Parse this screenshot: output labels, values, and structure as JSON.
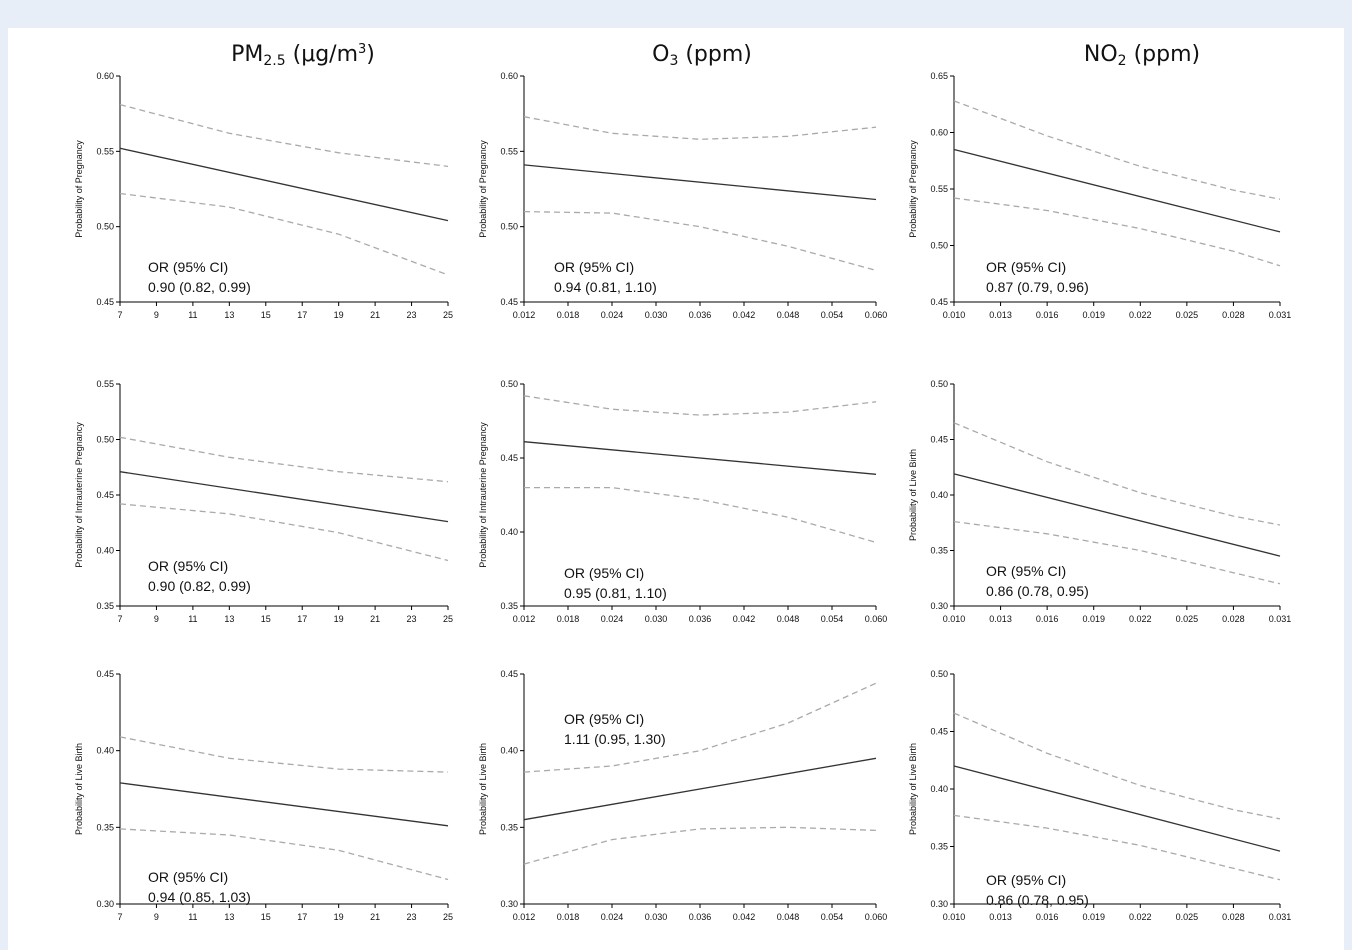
{
  "columns": [
    {
      "base": "PM",
      "sub": "2.5",
      "unit_pre": " (μg/m",
      "unit_sup": "3",
      "unit_post": ")"
    },
    {
      "base": "O",
      "sub": "3",
      "unit_pre": " (ppm)",
      "unit_sup": "",
      "unit_post": ""
    },
    {
      "base": "NO",
      "sub": "2",
      "unit_pre": " (ppm)",
      "unit_sup": "",
      "unit_post": ""
    }
  ],
  "colors": {
    "estimate": "#333333",
    "ci": "#aaaaaa",
    "axis": "#000000",
    "page_bg": "#e8eef7",
    "figure_bg": "#ffffff"
  },
  "chart_data": [
    {
      "type": "line",
      "row": 0,
      "col": 0,
      "ylabel": "Probability of Pregnancy",
      "xlim": [
        7,
        25
      ],
      "ylim": [
        0.45,
        0.6
      ],
      "xticks": [
        "7",
        "9",
        "11",
        "13",
        "15",
        "17",
        "19",
        "21",
        "23",
        "25"
      ],
      "yticks": [
        "0.45",
        "0.50",
        "0.55",
        "0.60"
      ],
      "series": [
        {
          "role": "estimate",
          "x": [
            7,
            25
          ],
          "y": [
            0.552,
            0.504
          ]
        },
        {
          "role": "ci",
          "x": [
            7,
            13,
            19,
            25
          ],
          "y": [
            0.581,
            0.562,
            0.549,
            0.54
          ]
        },
        {
          "role": "ci",
          "x": [
            7,
            13,
            19,
            25
          ],
          "y": [
            0.522,
            0.513,
            0.495,
            0.468
          ]
        }
      ],
      "annotation": {
        "label": "OR (95% CI)",
        "value": "0.90 (0.82, 0.99)"
      }
    },
    {
      "type": "line",
      "row": 0,
      "col": 1,
      "ylabel": "Probability of Pregnancy",
      "xlim": [
        0.012,
        0.06
      ],
      "ylim": [
        0.45,
        0.6
      ],
      "xticks": [
        "0.012",
        "0.018",
        "0.024",
        "0.030",
        "0.036",
        "0.042",
        "0.048",
        "0.054",
        "0.060"
      ],
      "yticks": [
        "0.45",
        "0.50",
        "0.55",
        "0.60"
      ],
      "series": [
        {
          "role": "estimate",
          "x": [
            0.012,
            0.06
          ],
          "y": [
            0.541,
            0.518
          ]
        },
        {
          "role": "ci",
          "x": [
            0.012,
            0.024,
            0.036,
            0.048,
            0.06
          ],
          "y": [
            0.573,
            0.562,
            0.558,
            0.56,
            0.566
          ]
        },
        {
          "role": "ci",
          "x": [
            0.012,
            0.024,
            0.036,
            0.048,
            0.06
          ],
          "y": [
            0.51,
            0.509,
            0.5,
            0.487,
            0.471
          ]
        }
      ],
      "annotation": {
        "label": "OR (95% CI)",
        "value": "0.94 (0.81, 1.10)"
      }
    },
    {
      "type": "line",
      "row": 0,
      "col": 2,
      "ylabel": "Probability of Pregnancy",
      "xlim": [
        0.01,
        0.031
      ],
      "ylim": [
        0.45,
        0.65
      ],
      "xticks": [
        "0.010",
        "0.013",
        "0.016",
        "0.019",
        "0.022",
        "0.025",
        "0.028",
        "0.031"
      ],
      "yticks": [
        "0.45",
        "0.50",
        "0.55",
        "0.60",
        "0.65"
      ],
      "series": [
        {
          "role": "estimate",
          "x": [
            0.01,
            0.031
          ],
          "y": [
            0.585,
            0.512
          ]
        },
        {
          "role": "ci",
          "x": [
            0.01,
            0.016,
            0.022,
            0.028,
            0.031
          ],
          "y": [
            0.628,
            0.597,
            0.57,
            0.549,
            0.541
          ]
        },
        {
          "role": "ci",
          "x": [
            0.01,
            0.016,
            0.022,
            0.028,
            0.031
          ],
          "y": [
            0.542,
            0.531,
            0.515,
            0.495,
            0.482
          ]
        }
      ],
      "annotation": {
        "label": "OR (95% CI)",
        "value": "0.87 (0.79, 0.96)"
      }
    },
    {
      "type": "line",
      "row": 1,
      "col": 0,
      "ylabel": "Probability of Intrauterine Pregnancy",
      "xlim": [
        7,
        25
      ],
      "ylim": [
        0.35,
        0.55
      ],
      "xticks": [
        "7",
        "9",
        "11",
        "13",
        "15",
        "17",
        "19",
        "21",
        "23",
        "25"
      ],
      "yticks": [
        "0.35",
        "0.40",
        "0.45",
        "0.50",
        "0.55"
      ],
      "series": [
        {
          "role": "estimate",
          "x": [
            7,
            25
          ],
          "y": [
            0.471,
            0.426
          ]
        },
        {
          "role": "ci",
          "x": [
            7,
            13,
            19,
            25
          ],
          "y": [
            0.502,
            0.484,
            0.471,
            0.462
          ]
        },
        {
          "role": "ci",
          "x": [
            7,
            13,
            19,
            25
          ],
          "y": [
            0.442,
            0.433,
            0.416,
            0.391
          ]
        }
      ],
      "annotation": {
        "label": "OR (95% CI)",
        "value": "0.90 (0.82, 0.99)"
      }
    },
    {
      "type": "line",
      "row": 1,
      "col": 1,
      "ylabel": "Probability of Intrauterine Pregnancy",
      "xlim": [
        0.012,
        0.06
      ],
      "ylim": [
        0.35,
        0.5
      ],
      "xticks": [
        "0.012",
        "0.018",
        "0.024",
        "0.030",
        "0.036",
        "0.042",
        "0.048",
        "0.054",
        "0.060"
      ],
      "yticks": [
        "0.35",
        "0.40",
        "0.45",
        "0.50"
      ],
      "series": [
        {
          "role": "estimate",
          "x": [
            0.012,
            0.06
          ],
          "y": [
            0.461,
            0.439
          ]
        },
        {
          "role": "ci",
          "x": [
            0.012,
            0.024,
            0.036,
            0.048,
            0.06
          ],
          "y": [
            0.492,
            0.483,
            0.479,
            0.481,
            0.488
          ]
        },
        {
          "role": "ci",
          "x": [
            0.012,
            0.024,
            0.036,
            0.048,
            0.06
          ],
          "y": [
            0.43,
            0.43,
            0.422,
            0.41,
            0.393
          ]
        }
      ],
      "annotation": {
        "label": "OR (95% CI)",
        "value": "0.95 (0.81, 1.10)"
      }
    },
    {
      "type": "line",
      "row": 1,
      "col": 2,
      "ylabel": "Probability of Live Birth",
      "xlim": [
        0.01,
        0.031
      ],
      "ylim": [
        0.3,
        0.5
      ],
      "xticks": [
        "0.010",
        "0.013",
        "0.016",
        "0.019",
        "0.022",
        "0.025",
        "0.028",
        "0.031"
      ],
      "yticks": [
        "0.30",
        "0.35",
        "0.40",
        "0.45",
        "0.50"
      ],
      "series": [
        {
          "role": "estimate",
          "x": [
            0.01,
            0.031
          ],
          "y": [
            0.419,
            0.345
          ]
        },
        {
          "role": "ci",
          "x": [
            0.01,
            0.016,
            0.022,
            0.028,
            0.031
          ],
          "y": [
            0.465,
            0.43,
            0.402,
            0.381,
            0.373
          ]
        },
        {
          "role": "ci",
          "x": [
            0.01,
            0.016,
            0.022,
            0.028,
            0.031
          ],
          "y": [
            0.376,
            0.365,
            0.35,
            0.33,
            0.32
          ]
        }
      ],
      "annotation": {
        "label": "OR (95% CI)",
        "value": "0.86 (0.78, 0.95)"
      }
    },
    {
      "type": "line",
      "row": 2,
      "col": 0,
      "ylabel": "Probability of Live Birth",
      "xlim": [
        7,
        25
      ],
      "ylim": [
        0.3,
        0.45
      ],
      "xticks": [
        "7",
        "9",
        "11",
        "13",
        "15",
        "17",
        "19",
        "21",
        "23",
        "25"
      ],
      "yticks": [
        "0.30",
        "0.35",
        "0.40",
        "0.45"
      ],
      "series": [
        {
          "role": "estimate",
          "x": [
            7,
            25
          ],
          "y": [
            0.379,
            0.351
          ]
        },
        {
          "role": "ci",
          "x": [
            7,
            13,
            19,
            25
          ],
          "y": [
            0.409,
            0.395,
            0.388,
            0.386
          ]
        },
        {
          "role": "ci",
          "x": [
            7,
            13,
            19,
            25
          ],
          "y": [
            0.349,
            0.345,
            0.335,
            0.316
          ]
        }
      ],
      "annotation": {
        "label": "OR (95% CI)",
        "value": "0.94 (0.85, 1.03)"
      }
    },
    {
      "type": "line",
      "row": 2,
      "col": 1,
      "ylabel": "Probability of Live Birth",
      "xlim": [
        0.012,
        0.06
      ],
      "ylim": [
        0.3,
        0.45
      ],
      "xticks": [
        "0.012",
        "0.018",
        "0.024",
        "0.030",
        "0.036",
        "0.042",
        "0.048",
        "0.054",
        "0.060"
      ],
      "yticks": [
        "0.30",
        "0.35",
        "0.40",
        "0.45"
      ],
      "series": [
        {
          "role": "estimate",
          "x": [
            0.012,
            0.06
          ],
          "y": [
            0.355,
            0.395
          ]
        },
        {
          "role": "ci",
          "x": [
            0.012,
            0.024,
            0.036,
            0.048,
            0.06
          ],
          "y": [
            0.386,
            0.39,
            0.4,
            0.418,
            0.444
          ]
        },
        {
          "role": "ci",
          "x": [
            0.012,
            0.024,
            0.036,
            0.048,
            0.06
          ],
          "y": [
            0.326,
            0.342,
            0.349,
            0.35,
            0.348
          ]
        }
      ],
      "annotation": {
        "label": "OR (95% CI)",
        "value": "1.11 (0.95,  1.30)"
      }
    },
    {
      "type": "line",
      "row": 2,
      "col": 2,
      "ylabel": "Probability of Live Birth",
      "xlim": [
        0.01,
        0.031
      ],
      "ylim": [
        0.3,
        0.5
      ],
      "xticks": [
        "0.010",
        "0.013",
        "0.016",
        "0.019",
        "0.022",
        "0.025",
        "0.028",
        "0.031"
      ],
      "yticks": [
        "0.30",
        "0.35",
        "0.40",
        "0.45",
        "0.50"
      ],
      "series": [
        {
          "role": "estimate",
          "x": [
            0.01,
            0.031
          ],
          "y": [
            0.42,
            0.346
          ]
        },
        {
          "role": "ci",
          "x": [
            0.01,
            0.016,
            0.022,
            0.028,
            0.031
          ],
          "y": [
            0.466,
            0.431,
            0.403,
            0.382,
            0.374
          ]
        },
        {
          "role": "ci",
          "x": [
            0.01,
            0.016,
            0.022,
            0.028,
            0.031
          ],
          "y": [
            0.377,
            0.366,
            0.351,
            0.331,
            0.321
          ]
        }
      ],
      "annotation": {
        "label": "OR (95% CI)",
        "value": "0.86 (0.78, 0.95)"
      }
    }
  ]
}
